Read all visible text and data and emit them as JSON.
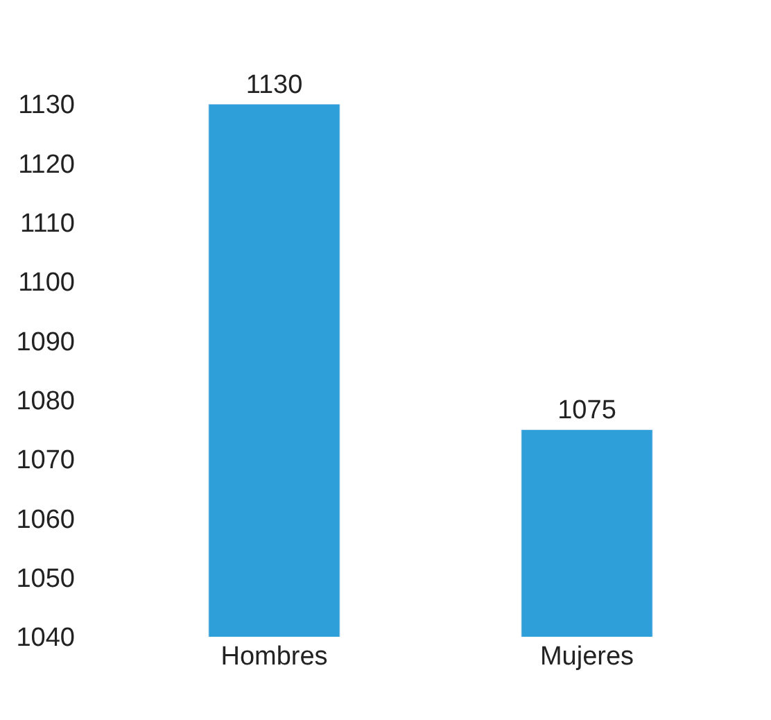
{
  "chart_data": {
    "type": "bar",
    "categories": [
      "Hombres",
      "Mujeres"
    ],
    "values": [
      1130,
      1075
    ],
    "color": "#2e9fd8",
    "ylim": [
      1040,
      1130
    ],
    "yticks": [
      1040,
      1050,
      1060,
      1070,
      1080,
      1090,
      1100,
      1110,
      1120,
      1130
    ],
    "data_labels": true
  }
}
